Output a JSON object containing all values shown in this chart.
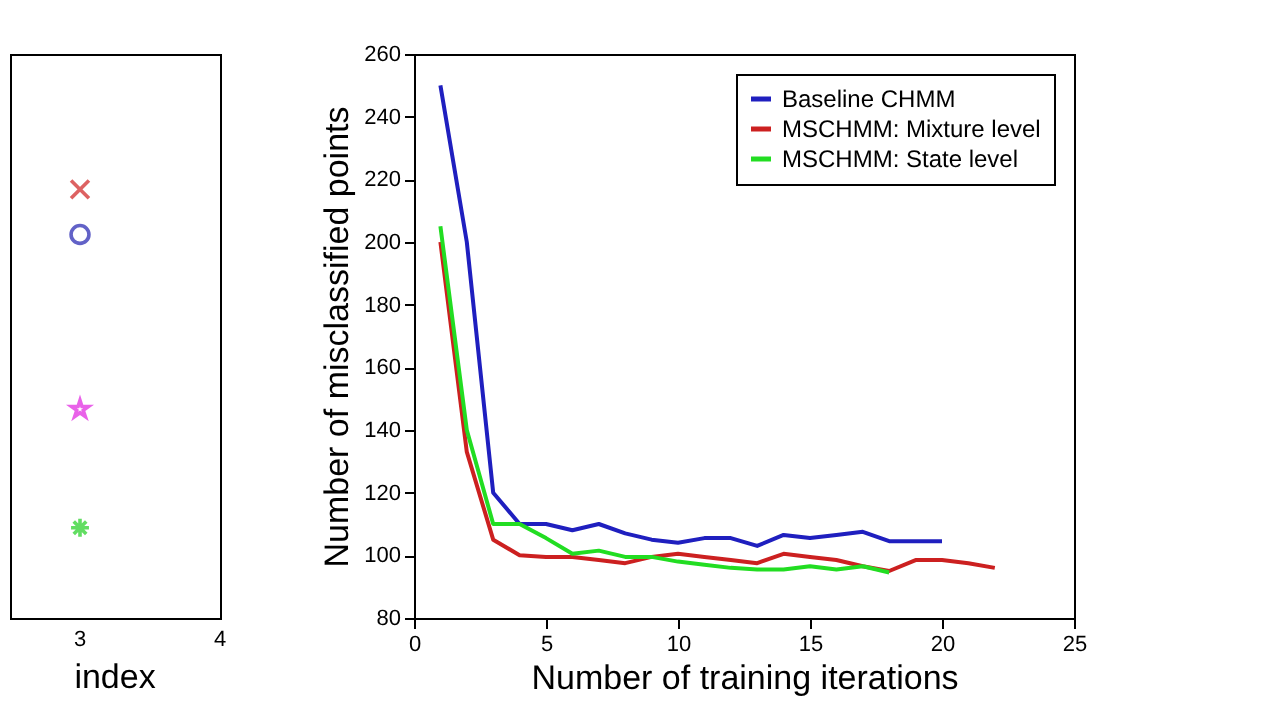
{
  "chart_data": [
    {
      "type": "other",
      "xlabel": "index",
      "annotations": [
        "3",
        "4"
      ]
    },
    {
      "type": "line",
      "xlabel": "Number of training iterations",
      "ylabel": "Number of misclassified points",
      "xlim": [
        0,
        25
      ],
      "xticks": [
        0,
        5,
        10,
        15,
        20,
        25
      ],
      "ylim": [
        80,
        260
      ],
      "yticks": [
        80,
        100,
        120,
        140,
        160,
        180,
        200,
        220,
        240,
        260
      ],
      "grid": false,
      "legend": "top right",
      "line_style": "solid",
      "series": [
        {
          "name": "Baseline CHMM",
          "color": "#1f1fbf",
          "x": [
            1,
            2,
            3,
            4,
            5,
            6,
            7,
            8,
            9,
            10,
            11,
            12,
            13,
            14,
            15,
            16,
            17,
            18,
            19,
            20
          ],
          "values": [
            250,
            200,
            120,
            110,
            110,
            108,
            110,
            107,
            105,
            104,
            105.5,
            105.5,
            103,
            106.5,
            105.5,
            106.5,
            107.5,
            104.5,
            104.5,
            104.5
          ]
        },
        {
          "name": "MSCHMM: Mixture level",
          "color": "#cc2020",
          "x": [
            1,
            2,
            3,
            4,
            5,
            6,
            7,
            8,
            9,
            10,
            11,
            12,
            13,
            14,
            15,
            16,
            17,
            18,
            19,
            20,
            21,
            22
          ],
          "values": [
            200,
            133,
            105,
            100,
            99.5,
            99.5,
            98.5,
            97.5,
            99.5,
            100.5,
            99.5,
            98.5,
            97.5,
            100.5,
            99.5,
            98.5,
            96.5,
            95,
            98.5,
            98.5,
            97.5,
            96
          ]
        },
        {
          "name": "MSCHMM: State level",
          "color": "#22dd22",
          "x": [
            1,
            2,
            3,
            4,
            5,
            6,
            7,
            8,
            9,
            10,
            11,
            12,
            13,
            14,
            15,
            16,
            17,
            18
          ],
          "values": [
            205,
            140,
            110,
            110,
            105.5,
            100.5,
            101.5,
            99.5,
            99.5,
            98,
            97,
            96,
            95.5,
            95.5,
            96.5,
            95.5,
            96.5,
            94.5
          ]
        }
      ]
    }
  ]
}
